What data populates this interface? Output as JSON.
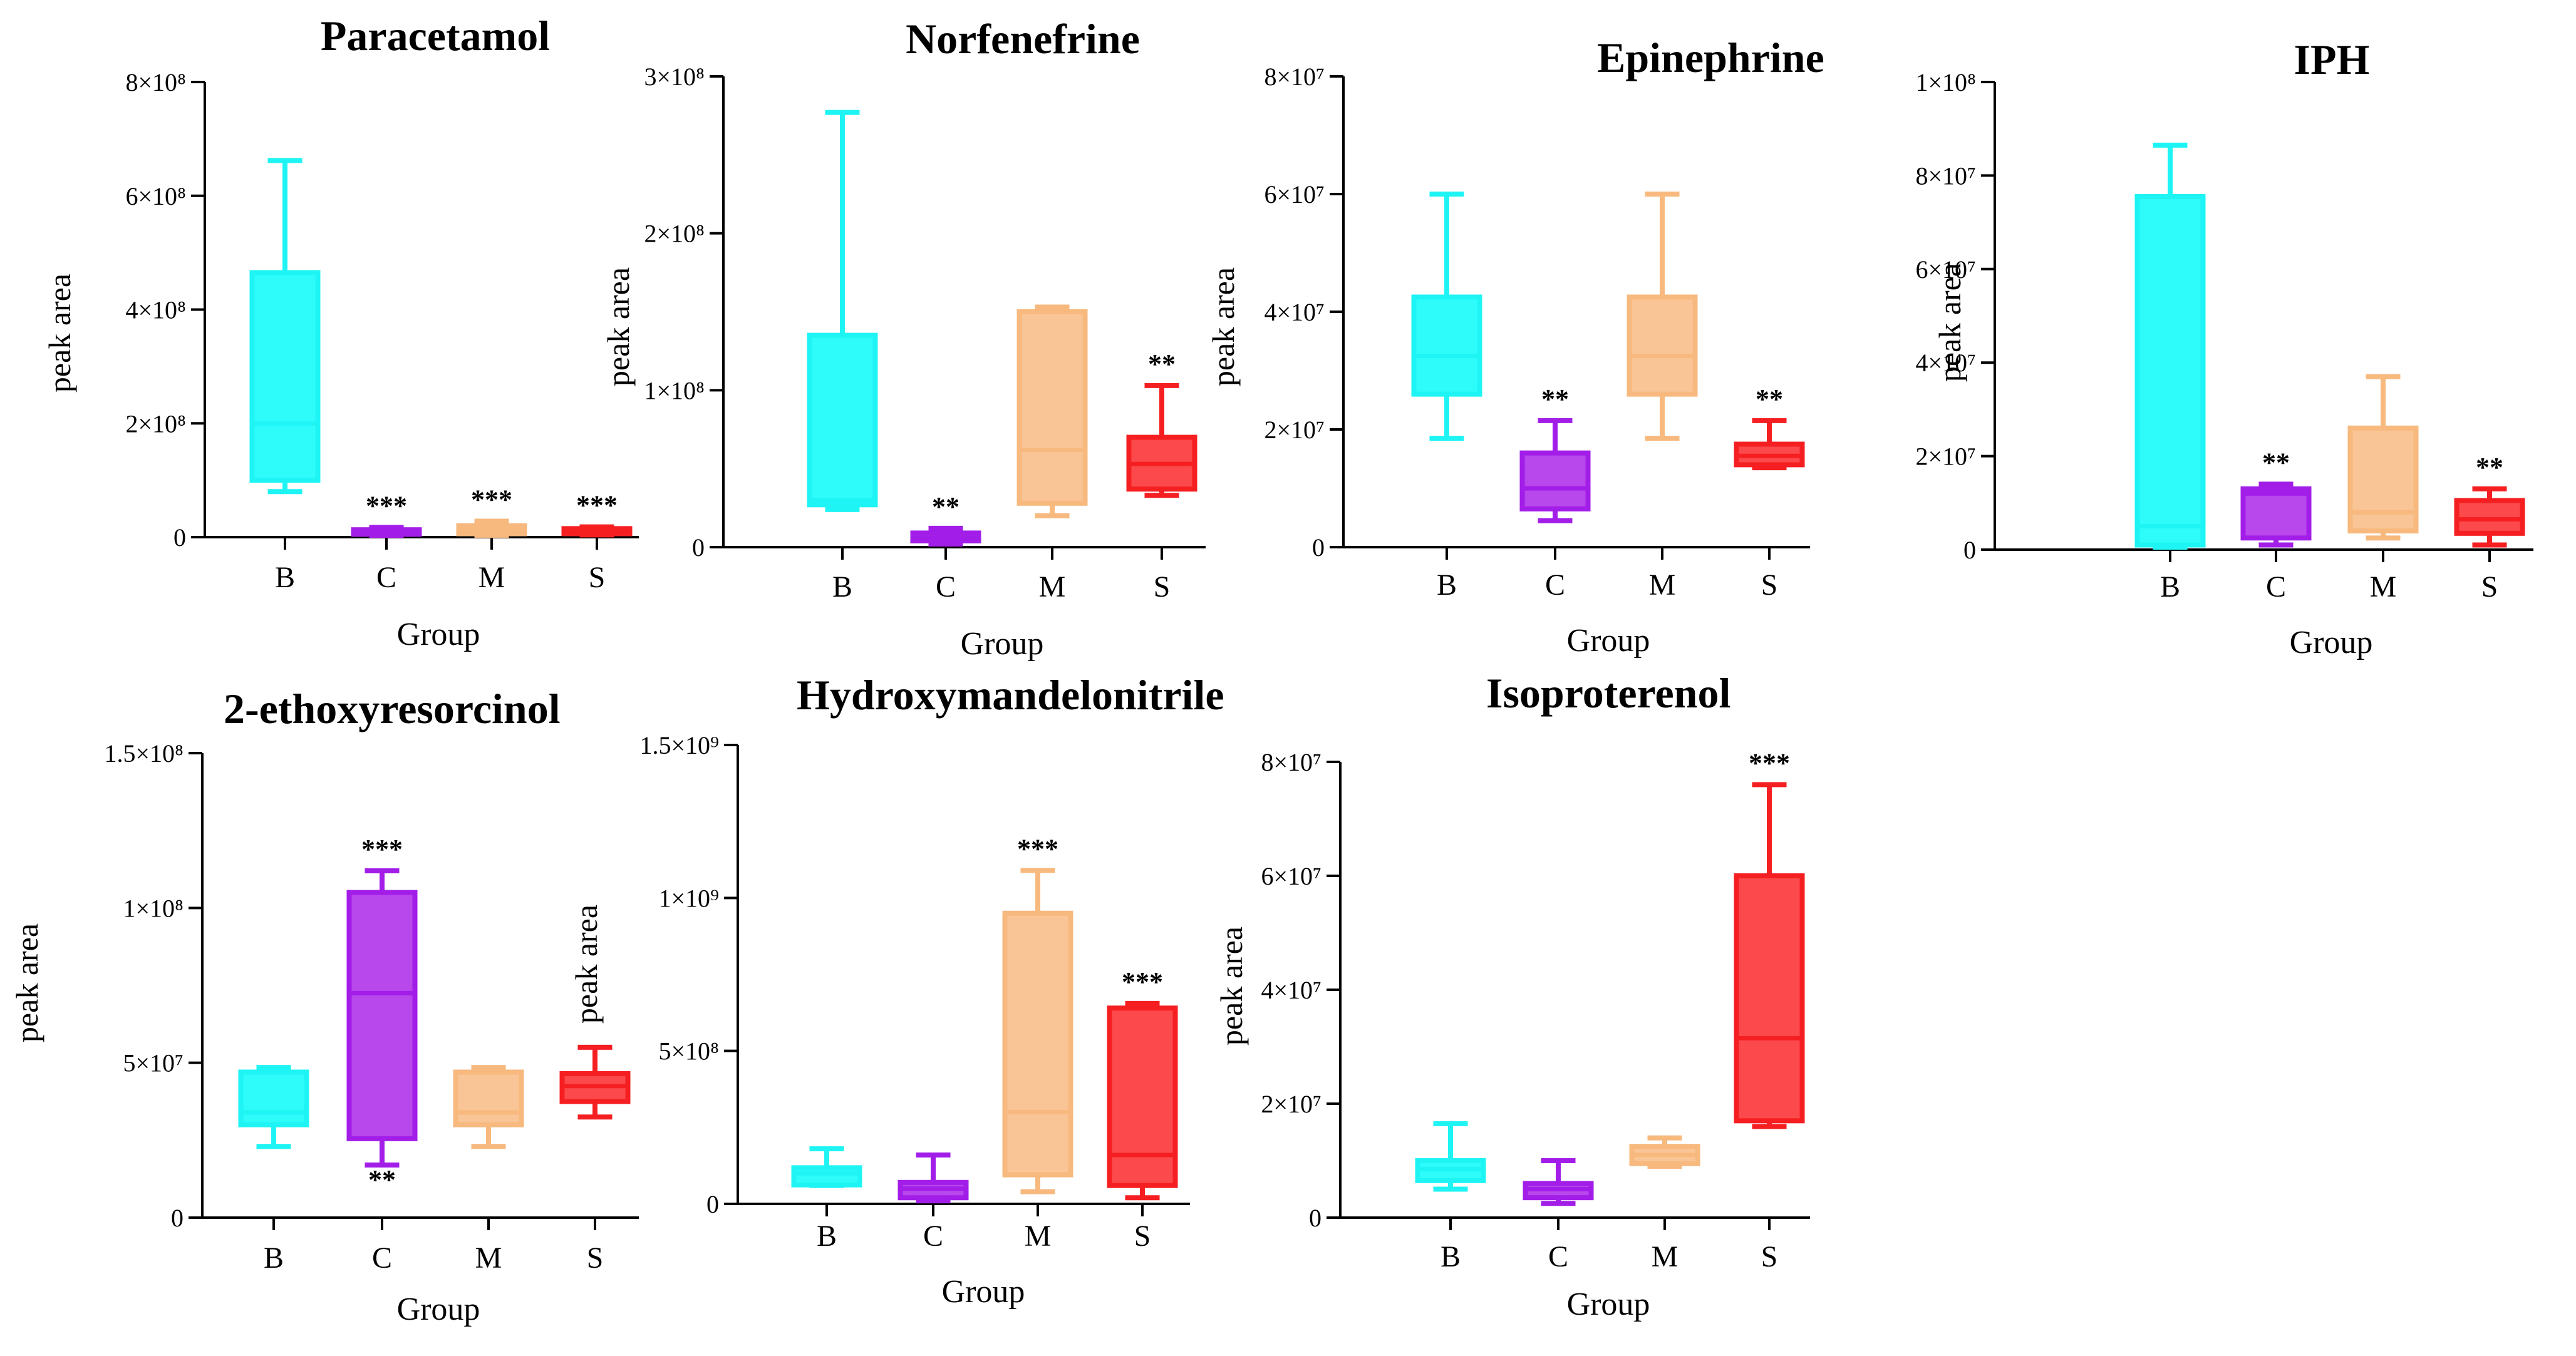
{
  "chart_data": [
    {
      "type": "box",
      "title": "Paracetamol",
      "xlabel": "Group",
      "ylabel": "peak area",
      "categories": [
        "B",
        "C",
        "M",
        "S"
      ],
      "ylim": [
        0,
        800000000
      ],
      "ticks": [
        {
          "value": 0,
          "label": "0"
        },
        {
          "value": 200000000,
          "label": "2×10⁸"
        },
        {
          "value": 400000000,
          "label": "4×10⁸"
        },
        {
          "value": 600000000,
          "label": "6×10⁸"
        },
        {
          "value": 800000000,
          "label": "8×10⁸"
        }
      ],
      "boxes": [
        {
          "group": "B",
          "min": 80000000,
          "q1": 100000000,
          "median": 200000000,
          "q3": 465000000,
          "max": 662000000,
          "significance": ""
        },
        {
          "group": "C",
          "min": 3000000,
          "q1": 5000000,
          "median": 9000000,
          "q3": 13000000,
          "max": 17000000,
          "significance": "***"
        },
        {
          "group": "M",
          "min": 3000000,
          "q1": 6000000,
          "median": 12000000,
          "q3": 20000000,
          "max": 28000000,
          "significance": "***"
        },
        {
          "group": "S",
          "min": 4000000,
          "q1": 6000000,
          "median": 12000000,
          "q3": 15000000,
          "max": 18000000,
          "significance": "***"
        }
      ]
    },
    {
      "type": "box",
      "title": "Norfenefrine",
      "xlabel": "Group",
      "ylabel": "peak area",
      "categories": [
        "B",
        "C",
        "M",
        "S"
      ],
      "ylim": [
        0,
        300000000
      ],
      "ticks": [
        {
          "value": 0,
          "label": "0"
        },
        {
          "value": 100000000,
          "label": "1×10⁸"
        },
        {
          "value": 200000000,
          "label": "2×10⁸"
        },
        {
          "value": 300000000,
          "label": "3×10⁸"
        }
      ],
      "boxes": [
        {
          "group": "B",
          "min": 24000000,
          "q1": 27000000,
          "median": 30000000,
          "q3": 135000000,
          "max": 277000000,
          "significance": ""
        },
        {
          "group": "C",
          "min": 2000000,
          "q1": 4000000,
          "median": 6000000,
          "q3": 9000000,
          "max": 12000000,
          "significance": "**"
        },
        {
          "group": "M",
          "min": 20000000,
          "q1": 28000000,
          "median": 62000000,
          "q3": 150000000,
          "max": 153000000,
          "significance": ""
        },
        {
          "group": "S",
          "min": 33000000,
          "q1": 37000000,
          "median": 53000000,
          "q3": 70000000,
          "max": 103000000,
          "significance": "**"
        }
      ]
    },
    {
      "type": "box",
      "title": "Epinephrine",
      "xlabel": "Group",
      "ylabel": "peak area",
      "categories": [
        "B",
        "C",
        "M",
        "S"
      ],
      "ylim": [
        0,
        80000000
      ],
      "ticks": [
        {
          "value": 0,
          "label": "0"
        },
        {
          "value": 20000000,
          "label": "2×10⁷"
        },
        {
          "value": 40000000,
          "label": "4×10⁷"
        },
        {
          "value": 60000000,
          "label": "6×10⁷"
        },
        {
          "value": 80000000,
          "label": "8×10⁷"
        }
      ],
      "boxes": [
        {
          "group": "B",
          "min": 18500000,
          "q1": 26000000,
          "median": 32500000,
          "q3": 42500000,
          "max": 60000000,
          "significance": ""
        },
        {
          "group": "C",
          "min": 4500000,
          "q1": 6500000,
          "median": 10000000,
          "q3": 16000000,
          "max": 21500000,
          "significance": "**"
        },
        {
          "group": "M",
          "min": 18500000,
          "q1": 26000000,
          "median": 32500000,
          "q3": 42500000,
          "max": 60000000,
          "significance": ""
        },
        {
          "group": "S",
          "min": 13500000,
          "q1": 14000000,
          "median": 15500000,
          "q3": 17500000,
          "max": 21500000,
          "significance": "**"
        }
      ]
    },
    {
      "type": "box",
      "title": "IPH",
      "xlabel": "Group",
      "ylabel": "peak area",
      "categories": [
        "B",
        "C",
        "M",
        "S"
      ],
      "ylim": [
        0,
        100000000
      ],
      "ticks": [
        {
          "value": 0,
          "label": "0"
        },
        {
          "value": 20000000,
          "label": "2×10⁷"
        },
        {
          "value": 40000000,
          "label": "4×10⁷"
        },
        {
          "value": 60000000,
          "label": "6×10⁷"
        },
        {
          "value": 80000000,
          "label": "8×10⁷"
        },
        {
          "value": 100000000,
          "label": "1×10⁸"
        }
      ],
      "boxes": [
        {
          "group": "B",
          "min": 500000,
          "q1": 1000000,
          "median": 5000000,
          "q3": 75500000,
          "max": 86500000,
          "significance": ""
        },
        {
          "group": "C",
          "min": 1000000,
          "q1": 2500000,
          "median": 12000000,
          "q3": 13000000,
          "max": 14000000,
          "significance": "**"
        },
        {
          "group": "M",
          "min": 2500000,
          "q1": 4000000,
          "median": 8000000,
          "q3": 26000000,
          "max": 37000000,
          "significance": ""
        },
        {
          "group": "S",
          "min": 1000000,
          "q1": 3500000,
          "median": 6500000,
          "q3": 10500000,
          "max": 13000000,
          "significance": "**"
        }
      ]
    },
    {
      "type": "box",
      "title": "2-ethoxyresorcinol",
      "xlabel": "Group",
      "ylabel": "peak area",
      "categories": [
        "B",
        "C",
        "M",
        "S"
      ],
      "ylim": [
        0,
        150000000
      ],
      "ticks": [
        {
          "value": 0,
          "label": "0"
        },
        {
          "value": 50000000,
          "label": "5×10⁷"
        },
        {
          "value": 100000000,
          "label": "1×10⁸"
        },
        {
          "value": 150000000,
          "label": "1.5×10⁸"
        }
      ],
      "boxes": [
        {
          "group": "B",
          "min": 23000000,
          "q1": 30000000,
          "median": 34000000,
          "q3": 47000000,
          "max": 48500000,
          "significance": ""
        },
        {
          "group": "C",
          "min": 17000000,
          "q1": 25500000,
          "median": 72500000,
          "q3": 105000000,
          "max": 112000000,
          "significance": "***",
          "significance_below": "**"
        },
        {
          "group": "M",
          "min": 23000000,
          "q1": 30000000,
          "median": 34000000,
          "q3": 47000000,
          "max": 48500000,
          "significance": ""
        },
        {
          "group": "S",
          "min": 32500000,
          "q1": 37500000,
          "median": 42500000,
          "q3": 46500000,
          "max": 55000000,
          "significance": ""
        }
      ]
    },
    {
      "type": "box",
      "title": "Hydroxymandelonitrile",
      "xlabel": "Group",
      "ylabel": "peak area",
      "categories": [
        "B",
        "C",
        "M",
        "S"
      ],
      "ylim": [
        0,
        1500000000
      ],
      "ticks": [
        {
          "value": 0,
          "label": "0"
        },
        {
          "value": 500000000,
          "label": "5×10⁸"
        },
        {
          "value": 1000000000,
          "label": "1×10⁹"
        },
        {
          "value": 1500000000,
          "label": "1.5×10⁹"
        }
      ],
      "boxes": [
        {
          "group": "B",
          "min": 60000000,
          "q1": 62000000,
          "median": 100000000,
          "q3": 118000000,
          "max": 180000000,
          "significance": ""
        },
        {
          "group": "C",
          "min": 10000000,
          "q1": 20000000,
          "median": 50000000,
          "q3": 70000000,
          "max": 160000000,
          "significance": ""
        },
        {
          "group": "M",
          "min": 40000000,
          "q1": 95000000,
          "median": 300000000,
          "q3": 950000000,
          "max": 1090000000,
          "significance": "***"
        },
        {
          "group": "S",
          "min": 20000000,
          "q1": 60000000,
          "median": 160000000,
          "q3": 640000000,
          "max": 655000000,
          "significance": "***"
        }
      ]
    },
    {
      "type": "box",
      "title": "Isoproterenol",
      "xlabel": "Group",
      "ylabel": "peak area",
      "categories": [
        "B",
        "C",
        "M",
        "S"
      ],
      "ylim": [
        0,
        80000000
      ],
      "ticks": [
        {
          "value": 0,
          "label": "0"
        },
        {
          "value": 20000000,
          "label": "2×10⁷"
        },
        {
          "value": 40000000,
          "label": "4×10⁷"
        },
        {
          "value": 60000000,
          "label": "6×10⁷"
        },
        {
          "value": 80000000,
          "label": "8×10⁷"
        }
      ],
      "boxes": [
        {
          "group": "B",
          "min": 5000000,
          "q1": 6500000,
          "median": 8500000,
          "q3": 10000000,
          "max": 16500000,
          "significance": ""
        },
        {
          "group": "C",
          "min": 2500000,
          "q1": 3500000,
          "median": 5000000,
          "q3": 6000000,
          "max": 10000000,
          "significance": ""
        },
        {
          "group": "M",
          "min": 9000000,
          "q1": 9500000,
          "median": 11000000,
          "q3": 12500000,
          "max": 14000000,
          "significance": ""
        },
        {
          "group": "S",
          "min": 16000000,
          "q1": 17000000,
          "median": 31500000,
          "q3": 60000000,
          "max": 76000000,
          "significance": "***"
        }
      ]
    }
  ],
  "colors": {
    "B": "#2dfcfa",
    "C": "#b847ec",
    "M": "#fac596",
    "S": "#fc4a4c",
    "B_stroke": "#1ff4f4",
    "C_stroke": "#a21ee8",
    "M_stroke": "#f7b97e",
    "S_stroke": "#f51f22"
  }
}
